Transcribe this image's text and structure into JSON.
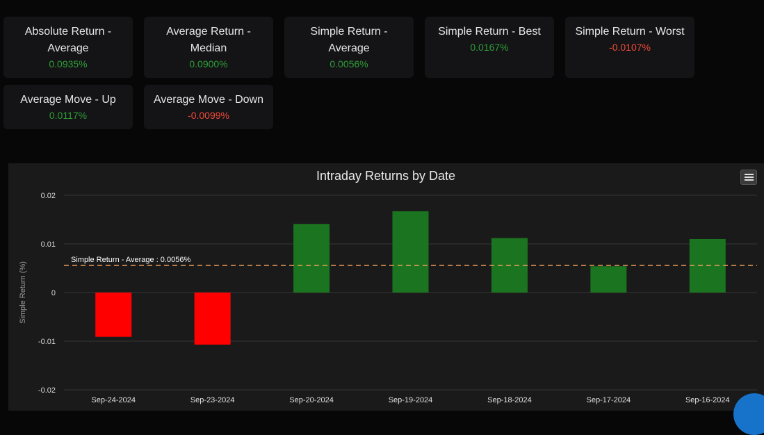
{
  "stats": [
    {
      "label": "Absolute Return - Average",
      "value": "0.0935%",
      "tone": "green"
    },
    {
      "label": "Average Return - Median",
      "value": "0.0900%",
      "tone": "green"
    },
    {
      "label": "Simple Return - Average",
      "value": "0.0056%",
      "tone": "green"
    },
    {
      "label": "Simple Return - Best",
      "value": "0.0167%",
      "tone": "green"
    },
    {
      "label": "Simple Return - Worst",
      "value": "-0.0107%",
      "tone": "red"
    },
    {
      "label": "Average Move - Up",
      "value": "0.0117%",
      "tone": "green"
    },
    {
      "label": "Average Move - Down",
      "value": "-0.0099%",
      "tone": "red"
    }
  ],
  "chart_data": {
    "type": "bar",
    "title": "Intraday Returns by Date",
    "ylabel": "Simple Return (%)",
    "xlabel": "",
    "categories": [
      "Sep-24-2024",
      "Sep-23-2024",
      "Sep-20-2024",
      "Sep-19-2024",
      "Sep-18-2024",
      "Sep-17-2024",
      "Sep-16-2024"
    ],
    "values": [
      -0.0091,
      -0.0107,
      0.0141,
      0.0167,
      0.0112,
      0.0054,
      0.011
    ],
    "ylim": [
      -0.02,
      0.02
    ],
    "yticks": [
      {
        "value": 0.02,
        "label": "0.02"
      },
      {
        "value": 0.01,
        "label": "0.01"
      },
      {
        "value": 0,
        "label": "0"
      },
      {
        "value": -0.01,
        "label": "-0.01"
      },
      {
        "value": -0.02,
        "label": "-0.02"
      }
    ],
    "grid": true,
    "positive_color": "#1b7420",
    "negative_color": "#ff0000",
    "average_line": {
      "value": 0.0056,
      "label": "Simple Return - Average : 0.0056%",
      "color": "#f5a35c"
    }
  },
  "colors": {
    "green": "#2e9e37",
    "red": "#f04a3a"
  }
}
